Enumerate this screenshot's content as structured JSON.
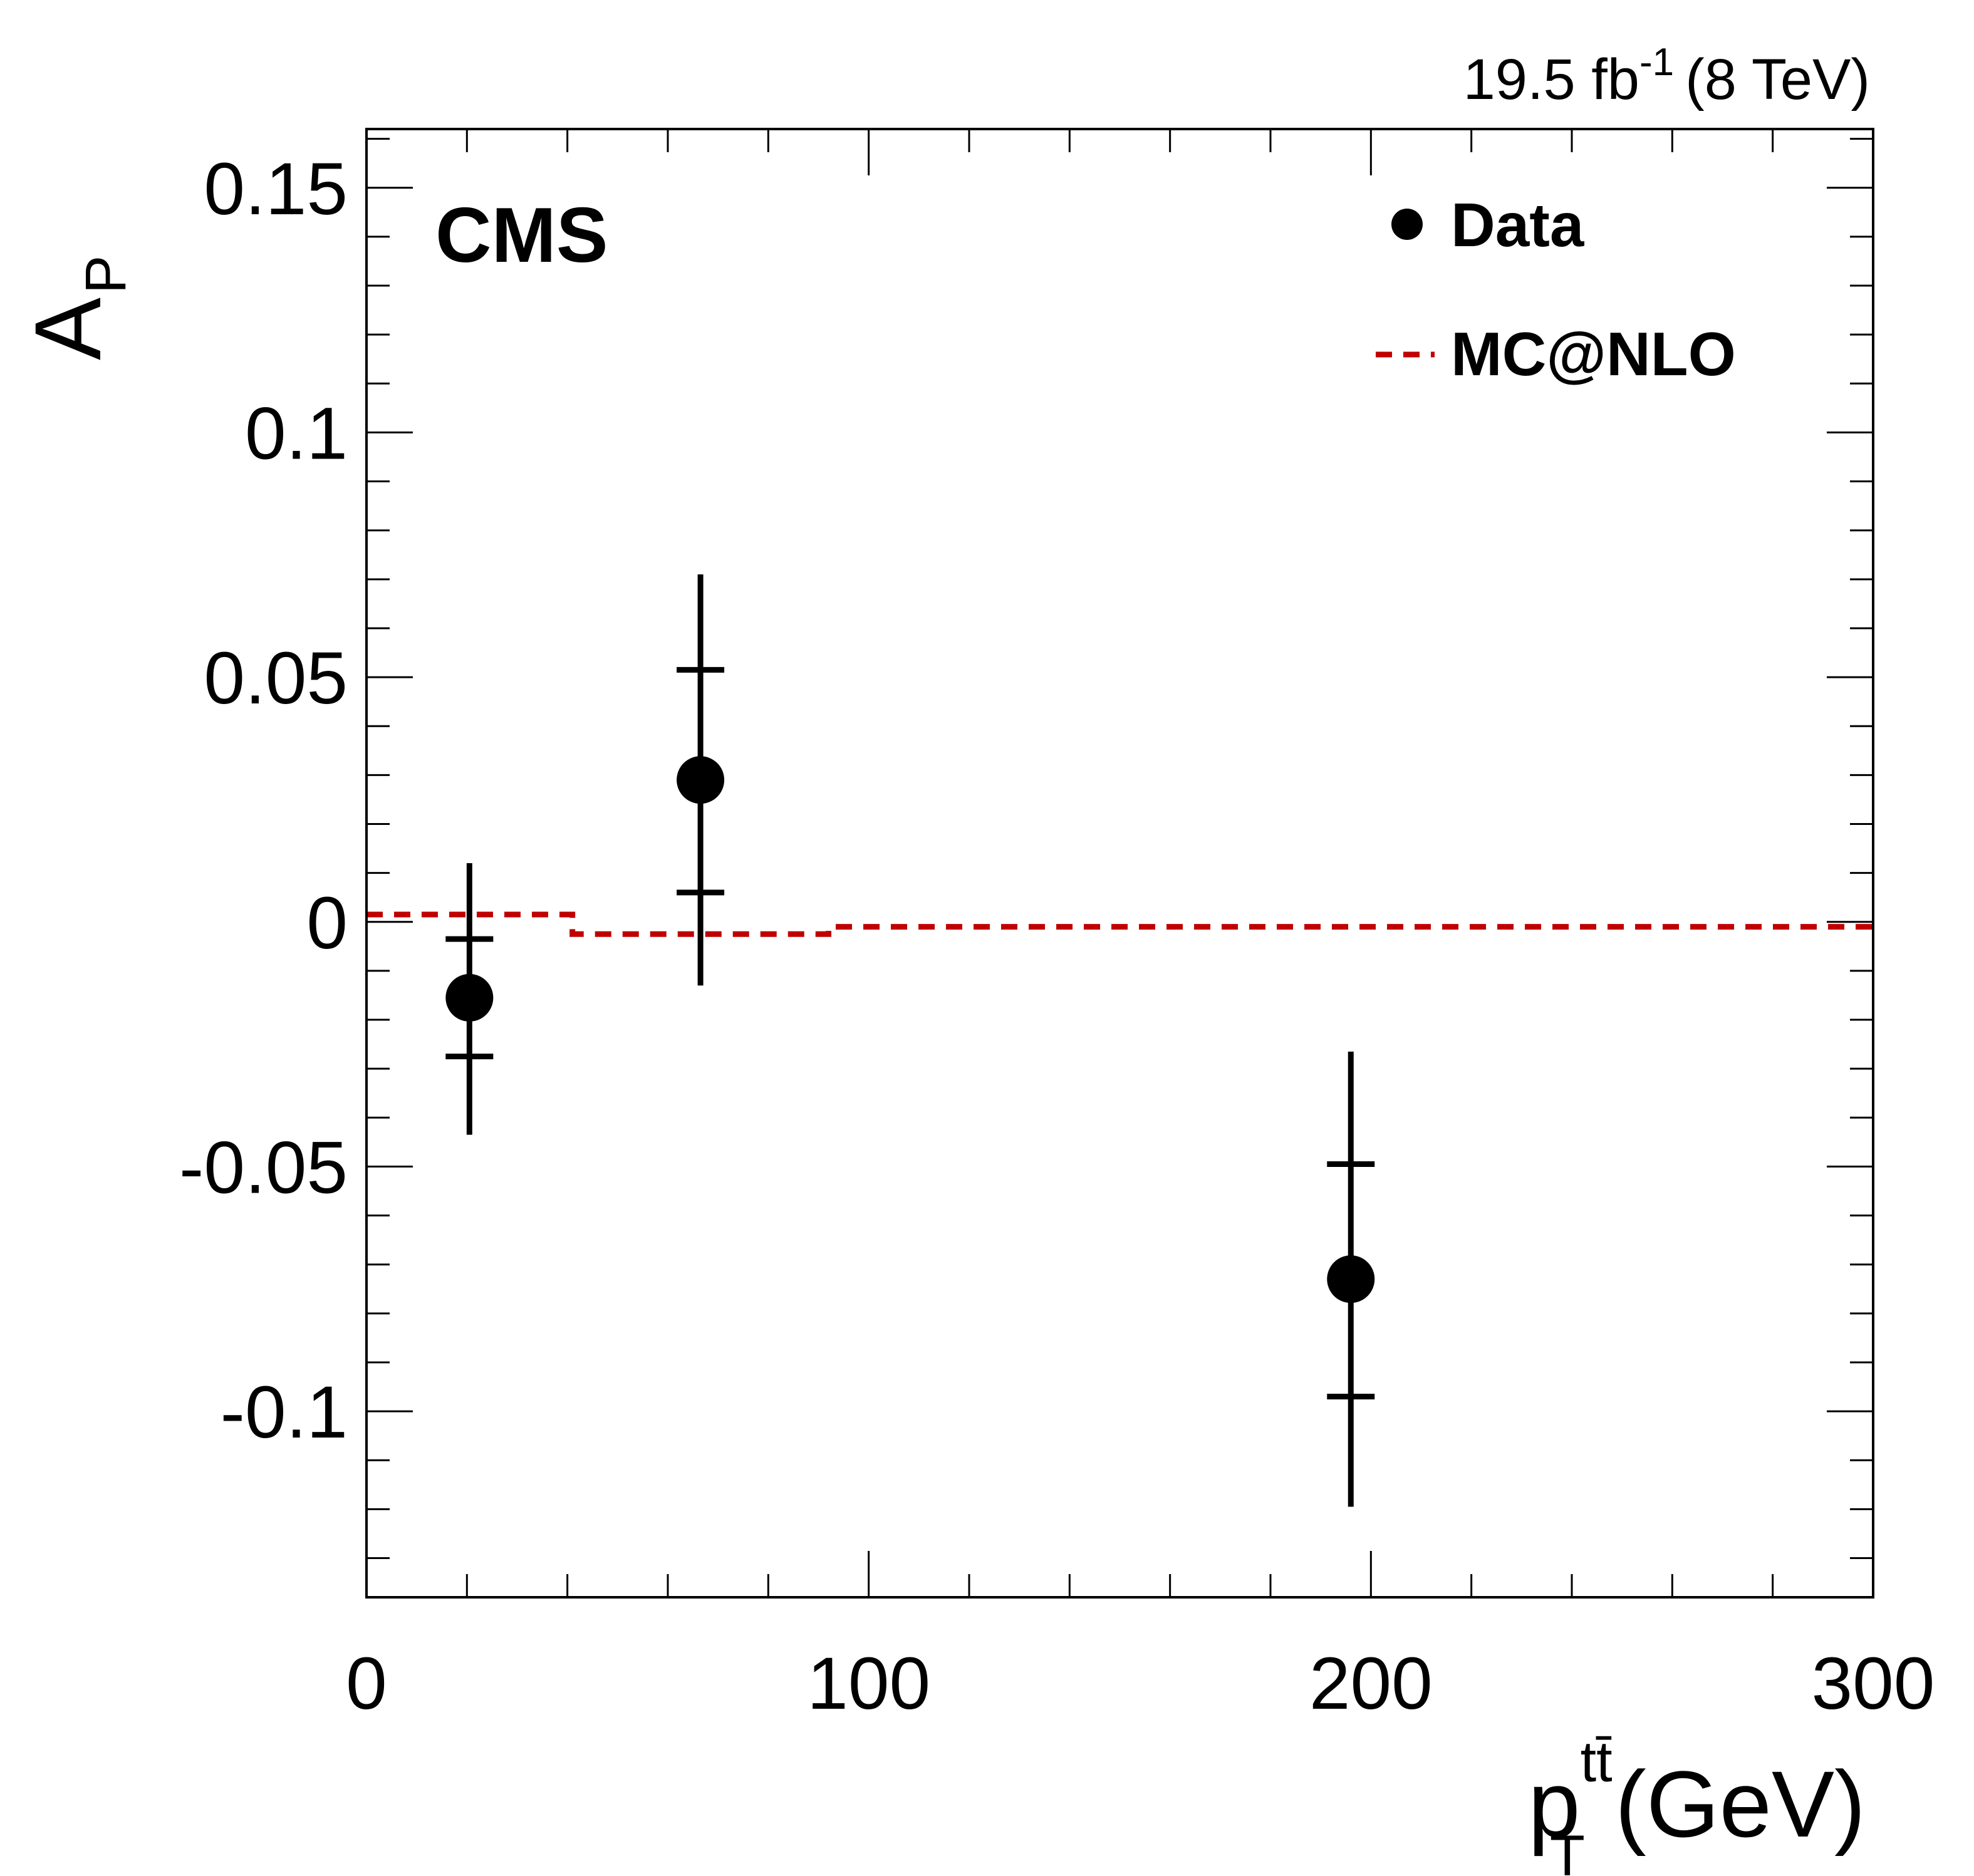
{
  "chart_data": {
    "type": "scatter",
    "title": "",
    "experiment_label": "CMS",
    "lumi": {
      "value": "19.5 fb",
      "exponent": "-1",
      "energy": "(8 TeV)"
    },
    "xlabel": {
      "symbol": "p",
      "superscript": "tt̄",
      "subscript": "T",
      "unit": "(GeV)"
    },
    "ylabel": {
      "symbol": "A",
      "subscript": "P"
    },
    "xlim": [
      0,
      300
    ],
    "ylim": [
      -0.138,
      0.162
    ],
    "x_ticks": [
      {
        "value": 0,
        "label": "0"
      },
      {
        "value": 100,
        "label": "100"
      },
      {
        "value": 200,
        "label": "200"
      },
      {
        "value": 300,
        "label": "300"
      }
    ],
    "y_ticks": [
      {
        "value": 0.15,
        "label": "0.15"
      },
      {
        "value": 0.1,
        "label": "0.1"
      },
      {
        "value": 0.05,
        "label": "0.05"
      },
      {
        "value": 0,
        "label": "0"
      },
      {
        "value": -0.05,
        "label": "-0.05"
      },
      {
        "value": -0.1,
        "label": "-0.1"
      }
    ],
    "series": [
      {
        "name": "Data",
        "kind": "points",
        "color": "#000000",
        "points": [
          {
            "x": 20.5,
            "y": -0.0155,
            "stat_lo": -0.0275,
            "stat_hi": -0.0035,
            "tot_lo": -0.0435,
            "tot_hi": 0.012
          },
          {
            "x": 66.5,
            "y": 0.029,
            "stat_lo": 0.006,
            "stat_hi": 0.0515,
            "tot_lo": -0.013,
            "tot_hi": 0.071
          },
          {
            "x": 196.0,
            "y": -0.073,
            "stat_lo": -0.097,
            "stat_hi": -0.0495,
            "tot_lo": -0.1195,
            "tot_hi": -0.0265
          }
        ]
      },
      {
        "name": "MC@NLO",
        "kind": "step",
        "color": "#c00000",
        "bins": [
          {
            "x0": 0,
            "x1": 41,
            "y": 0.0015
          },
          {
            "x0": 41,
            "x1": 92,
            "y": -0.0025
          },
          {
            "x0": 92,
            "x1": 300,
            "y": -0.001
          }
        ]
      }
    ],
    "legend": {
      "position": "top-right",
      "entries": [
        {
          "label": "Data",
          "marker": "circle"
        },
        {
          "label": "MC@NLO",
          "marker": "dashed-line"
        }
      ]
    }
  }
}
